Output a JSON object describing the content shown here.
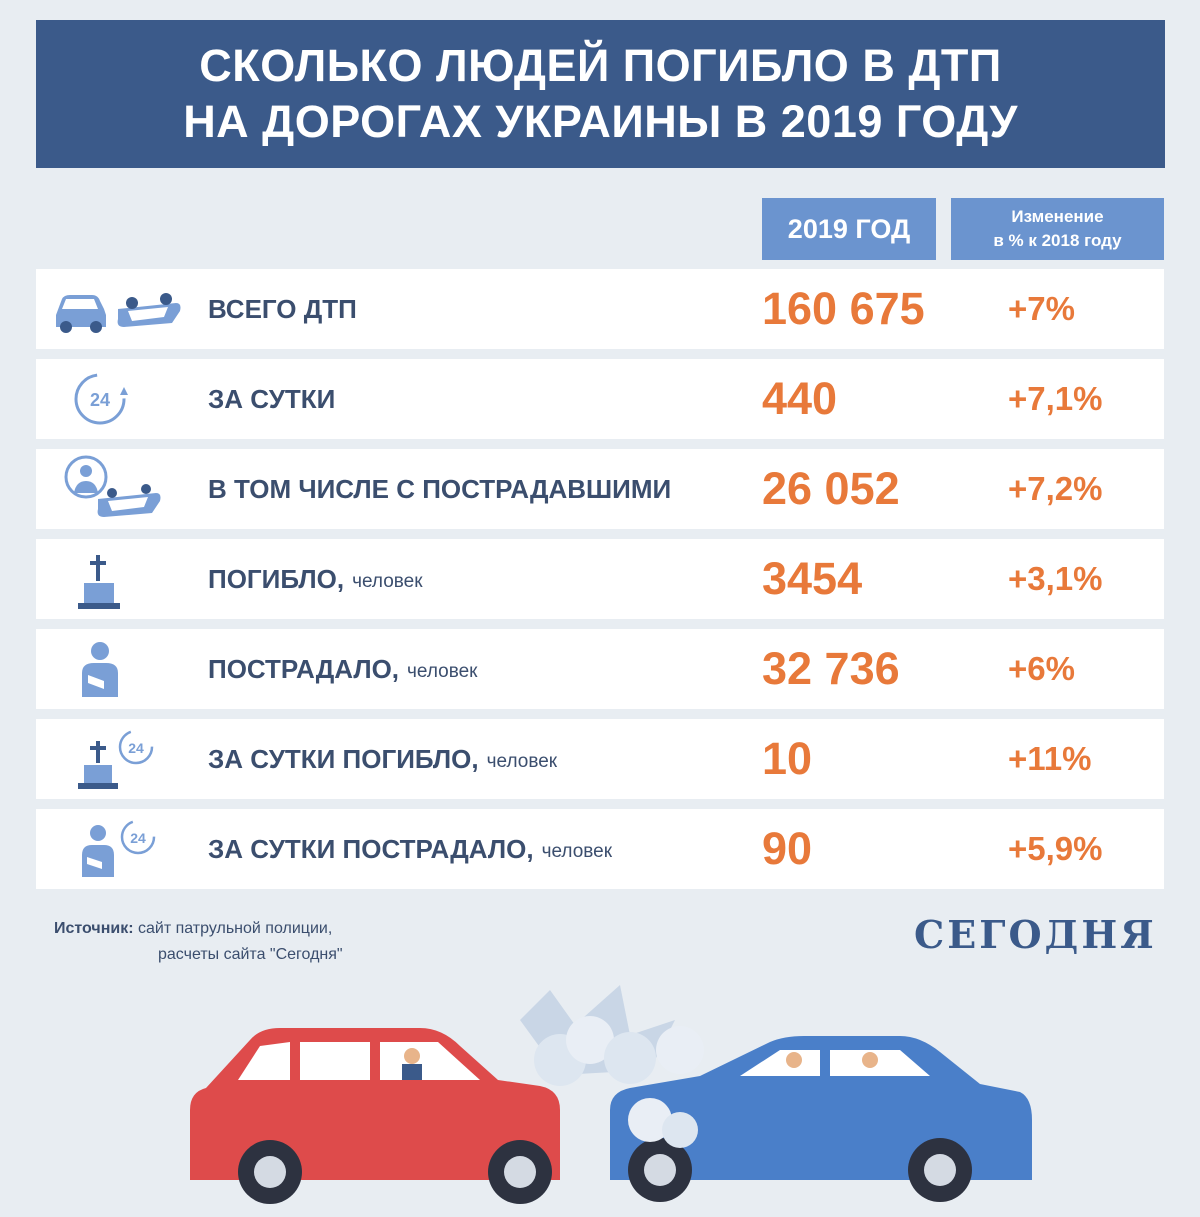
{
  "title": {
    "line1": "СКОЛЬКО ЛЮДЕЙ ПОГИБЛО В ДТП",
    "line2": "НА ДОРОГАХ УКРАИНЫ В 2019 ГОДУ"
  },
  "header": {
    "year_label": "2019 ГОД",
    "change_label_line1": "Изменение",
    "change_label_line2": "в % к 2018 году"
  },
  "rows": [
    {
      "label": "ВСЕГО ДТП",
      "unit": "",
      "value": "160 675",
      "change": "+7%",
      "icon": "crashed-cars-icon"
    },
    {
      "label": "ЗА СУТКИ",
      "unit": "",
      "value": "440",
      "change": "+7,1%",
      "icon": "clock-24-icon"
    },
    {
      "label": "В ТОМ ЧИСЛЕ С ПОСТРАДАВШИМИ",
      "unit": "",
      "value": "26 052",
      "change": "+7,2%",
      "icon": "injured-person-car-icon"
    },
    {
      "label": "ПОГИБЛО,",
      "unit": "человек",
      "value": "3454",
      "change": "+3,1%",
      "icon": "grave-icon"
    },
    {
      "label": "ПОСТРАДАЛО,",
      "unit": "человек",
      "value": "32 736",
      "change": "+6%",
      "icon": "injured-person-icon"
    },
    {
      "label": "ЗА СУТКИ ПОГИБЛО,",
      "unit": "человек",
      "value": "10",
      "change": "+11%",
      "icon": "grave-24-icon"
    },
    {
      "label": "ЗА СУТКИ ПОСТРАДАЛО,",
      "unit": "человек",
      "value": "90",
      "change": "+5,9%",
      "icon": "injured-person-24-icon"
    }
  ],
  "chart_data": {
    "type": "table",
    "title": "СКОЛЬКО ЛЮДЕЙ ПОГИБЛО В ДТП НА ДОРОГАХ УКРАИНЫ В 2019 ГОДУ",
    "columns": [
      "2019 ГОД",
      "Изменение в % к 2018 году"
    ],
    "rows": [
      {
        "category": "ВСЕГО ДТП",
        "value_2019": 160675,
        "change_pct_vs_2018": 7
      },
      {
        "category": "ЗА СУТКИ",
        "value_2019": 440,
        "change_pct_vs_2018": 7.1
      },
      {
        "category": "В ТОМ ЧИСЛЕ С ПОСТРАДАВШИМИ",
        "value_2019": 26052,
        "change_pct_vs_2018": 7.2
      },
      {
        "category": "ПОГИБЛО, человек",
        "value_2019": 3454,
        "change_pct_vs_2018": 3.1
      },
      {
        "category": "ПОСТРАДАЛО, человек",
        "value_2019": 32736,
        "change_pct_vs_2018": 6
      },
      {
        "category": "ЗА СУТКИ ПОГИБЛО, человек",
        "value_2019": 10,
        "change_pct_vs_2018": 11
      },
      {
        "category": "ЗА СУТКИ ПОСТРАДАЛО, человек",
        "value_2019": 90,
        "change_pct_vs_2018": 5.9
      }
    ]
  },
  "source": {
    "label": "Источник:",
    "line1": "сайт патрульной полиции,",
    "line2": "расчеты сайта \"Сегодня\""
  },
  "brand": "СЕГОДНЯ",
  "colors": {
    "title_bg": "#3b5a8a",
    "header_bg": "#6b94cf",
    "value": "#e8793a",
    "label": "#3b4e6e",
    "background": "#e8edf2"
  }
}
